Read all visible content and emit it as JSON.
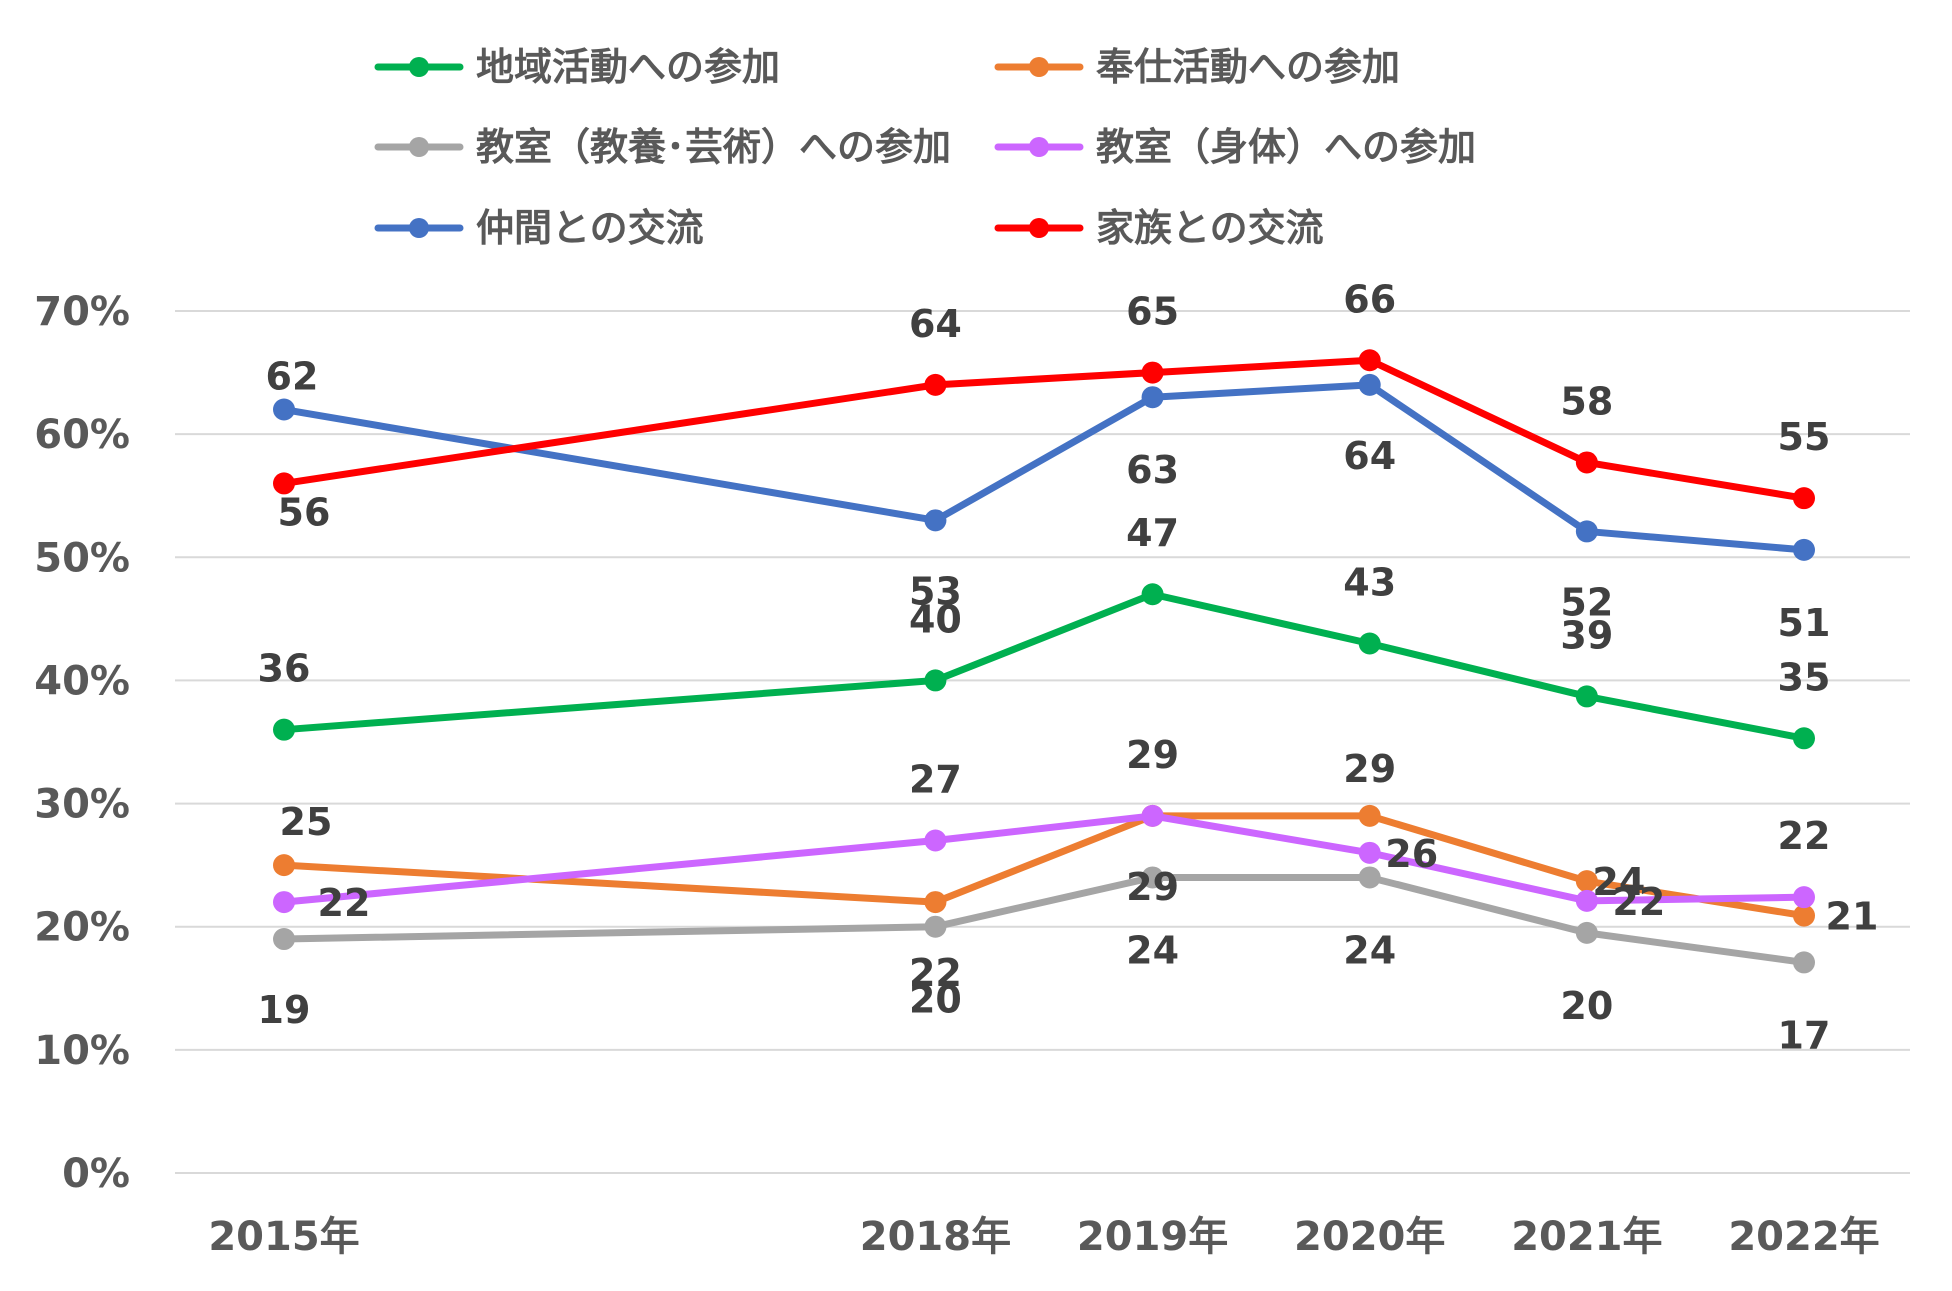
{
  "chart_data": {
    "type": "line",
    "title": "",
    "xlabel": "",
    "ylabel": "",
    "categories": [
      "2015年",
      "2018年",
      "2019年",
      "2020年",
      "2021年",
      "2022年"
    ],
    "x_positions": [
      2015,
      2018,
      2019,
      2020,
      2021,
      2022
    ],
    "ylim": [
      0,
      70
    ],
    "yticks": [
      0,
      10,
      20,
      30,
      40,
      50,
      60,
      70
    ],
    "ytick_labels": [
      "0%",
      "10%",
      "20%",
      "30%",
      "40%",
      "50%",
      "60%",
      "70%"
    ],
    "grid": true,
    "legend_position": "top",
    "series": [
      {
        "name": "地域活動への参加",
        "color": "#00b050",
        "values": [
          36,
          40,
          47,
          43,
          38.7,
          35.3
        ],
        "labels": [
          "36",
          "40",
          "47",
          "43",
          "39",
          "35"
        ]
      },
      {
        "name": "奉仕活動への参加",
        "color": "#ed7d31",
        "values": [
          25,
          22,
          29,
          29,
          23.7,
          20.9
        ],
        "labels": [
          "25",
          "22",
          "29",
          "29",
          "24",
          "21"
        ]
      },
      {
        "name": "教室（教養･芸術）への参加",
        "color": "#a5a5a5",
        "values": [
          19,
          20,
          24,
          24,
          19.5,
          17.1
        ],
        "labels": [
          "19",
          "20",
          "24",
          "24",
          "20",
          "17"
        ]
      },
      {
        "name": "教室（身体）への参加",
        "color": "#cc66ff",
        "values": [
          22,
          27,
          29,
          26,
          22.1,
          22.4
        ],
        "labels": [
          "22",
          "27",
          "29",
          "26",
          "22",
          "22"
        ]
      },
      {
        "name": "仲間との交流",
        "color": "#4472c4",
        "values": [
          62,
          53,
          63,
          64,
          52.1,
          50.6
        ],
        "labels": [
          "62",
          "53",
          "63",
          "64",
          "52",
          "51"
        ]
      },
      {
        "name": "家族との交流",
        "color": "#ff0000",
        "values": [
          56,
          64,
          65,
          66,
          57.7,
          54.8
        ],
        "labels": [
          "56",
          "64",
          "65",
          "66",
          "58",
          "55"
        ]
      }
    ]
  }
}
